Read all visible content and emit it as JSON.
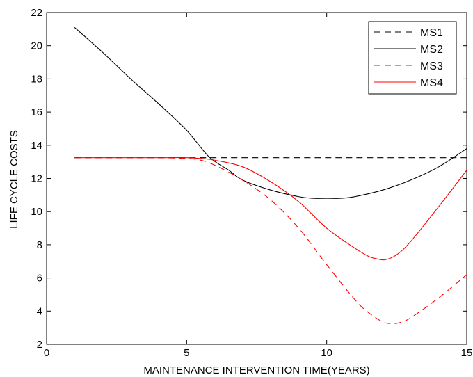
{
  "chart_data": {
    "type": "line",
    "title": "",
    "xlabel": "MAINTENANCE INTERVENTION TIME(YEARS)",
    "ylabel": "LIFE CYCLE COSTS",
    "xlim": [
      0,
      15
    ],
    "ylim": [
      2,
      22
    ],
    "xticks": [
      0,
      5,
      10,
      15
    ],
    "yticks": [
      2,
      4,
      6,
      8,
      10,
      12,
      14,
      16,
      18,
      20,
      22
    ],
    "grid": false,
    "legend_position": "top-right",
    "series": [
      {
        "name": "MS1",
        "color": "#000000",
        "dash": "dashed",
        "x": [
          1,
          15
        ],
        "y": [
          13.25,
          13.25
        ]
      },
      {
        "name": "MS2",
        "color": "#000000",
        "dash": "solid",
        "x": [
          1,
          2,
          3,
          4,
          5,
          5.8,
          6.5,
          7,
          8,
          9,
          9.5,
          10,
          10.5,
          11,
          12,
          13,
          14,
          15
        ],
        "y": [
          21.1,
          19.6,
          18.0,
          16.5,
          14.9,
          13.3,
          12.5,
          11.9,
          11.3,
          10.9,
          10.8,
          10.8,
          10.8,
          10.9,
          11.3,
          11.9,
          12.7,
          13.8
        ]
      },
      {
        "name": "MS3",
        "color": "#ff0000",
        "dash": "dashed",
        "x": [
          1,
          2,
          3,
          4,
          5,
          5.5,
          6,
          7,
          8,
          9,
          10,
          11,
          11.5,
          12,
          12.3,
          12.6,
          13,
          14,
          15
        ],
        "y": [
          13.25,
          13.25,
          13.25,
          13.25,
          13.2,
          13.1,
          12.8,
          11.9,
          10.7,
          9.0,
          6.8,
          4.7,
          3.9,
          3.35,
          3.25,
          3.3,
          3.6,
          4.8,
          6.2
        ]
      },
      {
        "name": "MS4",
        "color": "#ff0000",
        "dash": "solid",
        "x": [
          1,
          2,
          3,
          4,
          5,
          5.5,
          6,
          7,
          8,
          9,
          10,
          11,
          11.5,
          11.8,
          12.1,
          12.5,
          13,
          14,
          15
        ],
        "y": [
          13.25,
          13.25,
          13.25,
          13.25,
          13.25,
          13.2,
          13.1,
          12.7,
          11.8,
          10.6,
          9.0,
          7.8,
          7.3,
          7.15,
          7.1,
          7.4,
          8.2,
          10.3,
          12.5
        ]
      }
    ]
  }
}
